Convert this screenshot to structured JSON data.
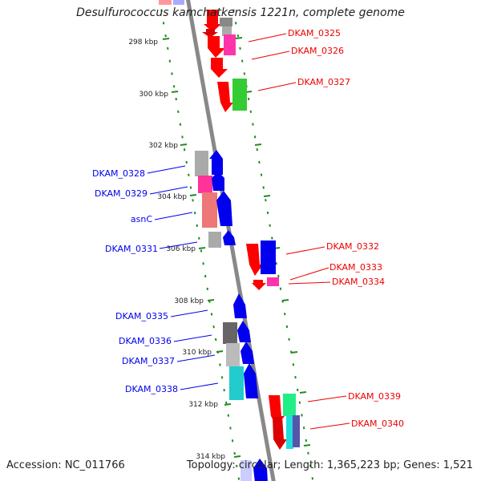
{
  "title": "Desulfurococcus kamchatkensis 1221n, complete genome",
  "footer": {
    "accession": "Accession: NC_011766",
    "summary": "Topology: circular; Length: 1,365,223 bp; Genes: 1,521"
  },
  "tick_labels": [
    "298 kbp",
    "300 kbp",
    "302 kbp",
    "304 kbp",
    "306 kbp",
    "308 kbp",
    "310 kbp",
    "312 kbp",
    "314 kbp"
  ],
  "genes_forward": [
    {
      "name": "DKAM_0328",
      "color": "#0000ee"
    },
    {
      "name": "DKAM_0329",
      "color": "#0000ee"
    },
    {
      "name": "asnC",
      "color": "#0000ee"
    },
    {
      "name": "DKAM_0331",
      "color": "#0000ee"
    },
    {
      "name": "DKAM_0335",
      "color": "#0000ee"
    },
    {
      "name": "DKAM_0336",
      "color": "#0000ee"
    },
    {
      "name": "DKAM_0337",
      "color": "#0000ee"
    },
    {
      "name": "DKAM_0338",
      "color": "#0000ee"
    }
  ],
  "genes_reverse": [
    {
      "name": "DKAM_0325",
      "color": "#ee0000"
    },
    {
      "name": "DKAM_0326",
      "color": "#ee0000"
    },
    {
      "name": "DKAM_0327",
      "color": "#ee0000"
    },
    {
      "name": "DKAM_0332",
      "color": "#ee0000"
    },
    {
      "name": "DKAM_0333",
      "color": "#ee0000"
    },
    {
      "name": "DKAM_0334",
      "color": "#ee0000"
    },
    {
      "name": "DKAM_0339",
      "color": "#ee0000"
    },
    {
      "name": "DKAM_0340",
      "color": "#ee0000"
    }
  ],
  "colors": {
    "forward_strand": "#0000ee",
    "reverse_strand": "#ee0000",
    "backbone": "#888888",
    "tick": "#228b22"
  }
}
